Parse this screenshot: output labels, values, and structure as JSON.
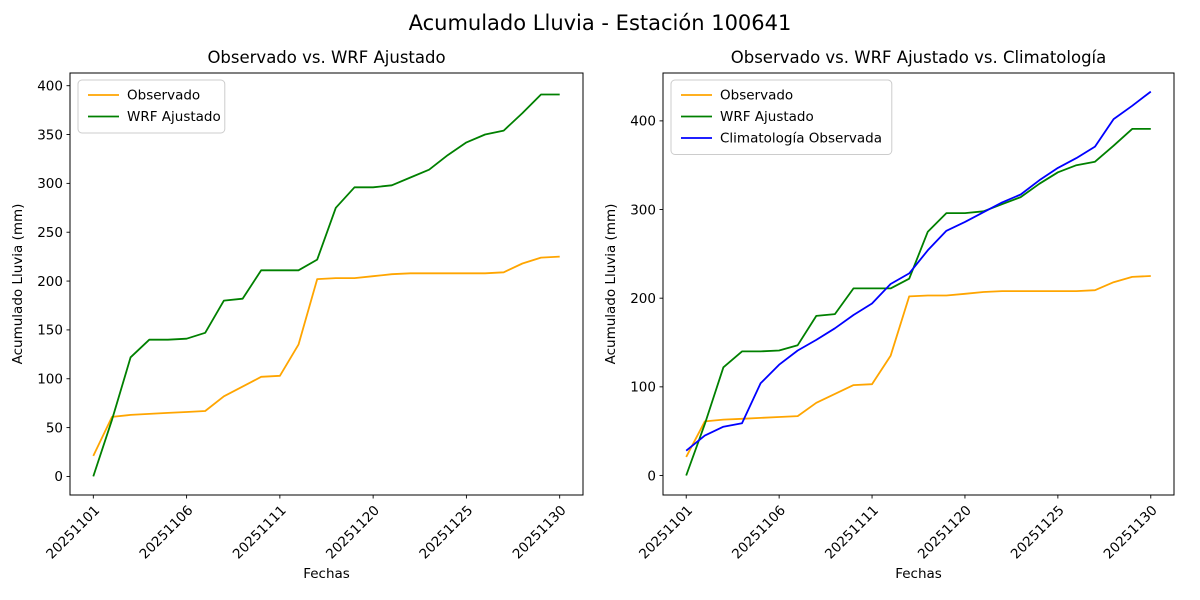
{
  "figure": {
    "title": "Acumulado Lluvia - Estación 100641",
    "background": "#ffffff",
    "text_color": "#000000",
    "spine_color": "#000000",
    "legend_edge_color": "#cccccc",
    "legend_face_color": "#ffffff"
  },
  "chart_data": [
    {
      "type": "line",
      "title": "Observado vs. WRF Ajustado",
      "xlabel": "Fechas",
      "ylabel": "Acumulado Lluvia (mm)",
      "n_points": 26,
      "xlim": [
        -1.25,
        26.25
      ],
      "ylim": [
        -19,
        413
      ],
      "grid": false,
      "legend_position": "upper-left",
      "x_tick_positions": [
        0,
        5,
        10,
        15,
        20,
        25
      ],
      "x_tick_labels": [
        "20251101",
        "20251106",
        "20251111",
        "20251120",
        "20251125",
        "20251130"
      ],
      "y_ticks": [
        0,
        50,
        100,
        150,
        200,
        250,
        300,
        350,
        400
      ],
      "series": [
        {
          "name": "Observado",
          "color": "#ffa500",
          "values": [
            21,
            61,
            63,
            64,
            65,
            66,
            67,
            82,
            92,
            102,
            103,
            135,
            202,
            203,
            203,
            205,
            207,
            208,
            208,
            208,
            208,
            208,
            209,
            218,
            224,
            225
          ]
        },
        {
          "name": "WRF Ajustado",
          "color": "#008000",
          "values": [
            0,
            58,
            122,
            140,
            140,
            141,
            147,
            180,
            182,
            211,
            211,
            211,
            222,
            275,
            296,
            296,
            298,
            306,
            314,
            329,
            342,
            350,
            354,
            372,
            391,
            391
          ]
        }
      ]
    },
    {
      "type": "line",
      "title": "Observado vs. WRF Ajustado vs. Climatología",
      "xlabel": "Fechas",
      "ylabel": "Acumulado Lluvia (mm)",
      "n_points": 26,
      "xlim": [
        -1.25,
        26.25
      ],
      "ylim": [
        -22,
        454
      ],
      "grid": false,
      "legend_position": "upper-left",
      "x_tick_positions": [
        0,
        5,
        10,
        15,
        20,
        25
      ],
      "x_tick_labels": [
        "20251101",
        "20251106",
        "20251111",
        "20251120",
        "20251125",
        "20251130"
      ],
      "y_ticks": [
        0,
        100,
        200,
        300,
        400
      ],
      "series": [
        {
          "name": "Observado",
          "color": "#ffa500",
          "values": [
            21,
            61,
            63,
            64,
            65,
            66,
            67,
            82,
            92,
            102,
            103,
            135,
            202,
            203,
            203,
            205,
            207,
            208,
            208,
            208,
            208,
            208,
            209,
            218,
            224,
            225
          ]
        },
        {
          "name": "WRF Ajustado",
          "color": "#008000",
          "values": [
            0,
            58,
            122,
            140,
            140,
            141,
            147,
            180,
            182,
            211,
            211,
            211,
            222,
            275,
            296,
            296,
            298,
            306,
            314,
            329,
            342,
            350,
            354,
            372,
            391,
            391
          ]
        },
        {
          "name": "Climatología Observada",
          "color": "#0000ff",
          "values": [
            28,
            45,
            55,
            59,
            104,
            125,
            141,
            153,
            166,
            181,
            194,
            216,
            228,
            254,
            276,
            286,
            297,
            308,
            317,
            333,
            347,
            358,
            371,
            402,
            417,
            433
          ]
        }
      ]
    }
  ]
}
